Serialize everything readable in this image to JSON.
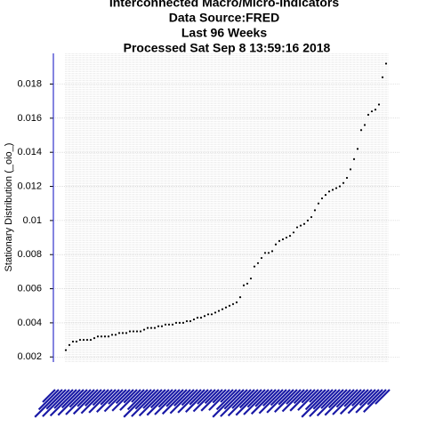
{
  "chart_data": {
    "type": "scatter",
    "title": [
      "Interconnected Macro/Micro-Indicators",
      "Data Source:FRED",
      "Last  96  Weeks",
      "Processed  Sat Sep  8 13:59:16 2018"
    ],
    "y_label": "Stationary Distribution (_oio_)",
    "x": [
      1,
      2,
      3,
      4,
      5,
      6,
      7,
      8,
      9,
      10,
      11,
      12,
      13,
      14,
      15,
      16,
      17,
      18,
      19,
      20,
      21,
      22,
      23,
      24,
      25,
      26,
      27,
      28,
      29,
      30,
      31,
      32,
      33,
      34,
      35,
      36,
      37,
      38,
      39,
      40,
      41,
      42,
      43,
      44,
      45,
      46,
      47,
      48,
      49,
      50,
      51,
      52,
      53,
      54,
      55,
      56,
      57,
      58,
      59,
      60,
      61,
      62,
      63,
      64,
      65,
      66,
      67,
      68,
      69,
      70,
      71,
      72,
      73,
      74,
      75,
      76,
      77,
      78,
      79,
      80,
      81,
      82,
      83,
      84,
      85,
      86,
      87,
      88,
      89,
      90,
      91
    ],
    "values": [
      0.0024,
      0.0027,
      0.0029,
      0.0029,
      0.003,
      0.003,
      0.003,
      0.003,
      0.0031,
      0.0032,
      0.0032,
      0.0032,
      0.0032,
      0.0033,
      0.0033,
      0.0034,
      0.0034,
      0.0034,
      0.0035,
      0.0035,
      0.0035,
      0.0035,
      0.0036,
      0.0037,
      0.0037,
      0.0037,
      0.0038,
      0.0038,
      0.0039,
      0.0039,
      0.0039,
      0.004,
      0.004,
      0.004,
      0.0041,
      0.0041,
      0.0042,
      0.0043,
      0.0043,
      0.0044,
      0.0045,
      0.0045,
      0.0046,
      0.0047,
      0.0048,
      0.0049,
      0.005,
      0.0051,
      0.0052,
      0.0055,
      0.0062,
      0.0063,
      0.0066,
      0.0073,
      0.0075,
      0.0078,
      0.0081,
      0.0081,
      0.0082,
      0.0086,
      0.0088,
      0.0089,
      0.009,
      0.0091,
      0.0093,
      0.0096,
      0.0097,
      0.0098,
      0.01,
      0.0102,
      0.0106,
      0.011,
      0.0113,
      0.0115,
      0.0117,
      0.0118,
      0.0119,
      0.012,
      0.0122,
      0.0125,
      0.013,
      0.0136,
      0.0142,
      0.0153,
      0.0156,
      0.0162,
      0.0164,
      0.0165,
      0.0168,
      0.0184,
      0.0192
    ],
    "color": "#000000",
    "xlim": [
      -2.5,
      95
    ],
    "ylim": [
      0.0017,
      0.0198
    ],
    "yticks": [
      0.002,
      0.004,
      0.006,
      0.008,
      0.01,
      0.012,
      0.014,
      0.016,
      0.018
    ],
    "grid": true
  }
}
